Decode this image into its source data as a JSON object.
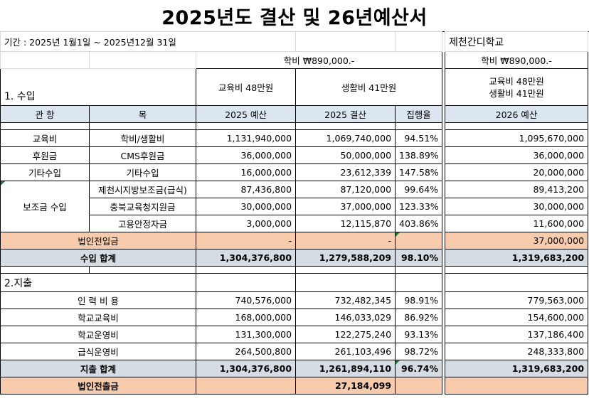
{
  "title": "2025년도 결산 및 26년예산서",
  "period": "기간 : 2025년 1월1일 ~ 2025년12월 31일",
  "school": "제천간디학교",
  "tuition_2025": "학비 ₩890,000.-",
  "tuition_2026": "학비 ₩890,000.-",
  "edu_fee_2025": "교육비 48만원",
  "living_fee_2025": "생활비 41만원",
  "edu_fee_2026": "교육비 48만원",
  "living_fee_2026": "생활비 41만원",
  "income_section": "1. 수입",
  "expense_section": "2.지출",
  "headers": {
    "category": "관 항",
    "item": "목",
    "budget_2025": "2025 예산",
    "actual_2025": "2025 결산",
    "rate": "집행율",
    "budget_2026": "2026 예산"
  },
  "income_rows": [
    {
      "category": "교육비",
      "item": "학비/생활비",
      "budget": "1,131,940,000",
      "actual": "1,069,740,000",
      "rate": "94.51%",
      "next": "1,095,670,000"
    },
    {
      "category": "후원금",
      "item": "CMS후원금",
      "budget": "36,000,000",
      "actual": "50,000,000",
      "rate": "138.89%",
      "next": "36,000,000"
    },
    {
      "category": "기타수입",
      "item": "기타수입",
      "budget": "16,000,000",
      "actual": "23,612,339",
      "rate": "147.58%",
      "next": "20,000,000"
    }
  ],
  "subsidy_category": "보조금 수입",
  "subsidy_rows": [
    {
      "item": "제천시지방보조금(급식)",
      "budget": "87,436,800",
      "actual": "87,120,000",
      "rate": "99.64%",
      "next": "89,413,200"
    },
    {
      "item": "충북교육청지원금",
      "budget": "30,000,000",
      "actual": "37,000,000",
      "rate": "123.33%",
      "next": "30,000,000"
    },
    {
      "item": "고용안정자금",
      "budget": "3,000,000",
      "actual": "12,115,870",
      "rate": "403.86%",
      "next": "11,600,000"
    }
  ],
  "corp_transfer_in": {
    "label": "법인전입금",
    "budget": "-",
    "actual": "-",
    "next": "37,000,000"
  },
  "income_total": {
    "label": "수입 합계",
    "budget": "1,304,376,800",
    "actual": "1,279,588,209",
    "rate": "98.10%",
    "next": "1,319,683,200"
  },
  "expense_rows": [
    {
      "item": "인 력 비 용",
      "budget": "740,576,000",
      "actual": "732,482,345",
      "rate": "98.91%",
      "next": "779,563,000"
    },
    {
      "item": "학교교육비",
      "budget": "168,000,000",
      "actual": "146,033,029",
      "rate": "86.92%",
      "next": "154,600,000"
    },
    {
      "item": "학교운영비",
      "budget": "131,300,000",
      "actual": "122,275,240",
      "rate": "93.13%",
      "next": "137,186,400"
    },
    {
      "item": "급식운영비",
      "budget": "264,500,800",
      "actual": "261,103,496",
      "rate": "98.72%",
      "next": "248,333,800"
    }
  ],
  "expense_total": {
    "label": "지출 합계",
    "budget": "1,304,376,800",
    "actual": "1,261,894,110",
    "rate": "96.74%",
    "next": "1,319,683,200"
  },
  "corp_transfer_out": {
    "label": "법인전출금",
    "actual": "27,184,099"
  }
}
